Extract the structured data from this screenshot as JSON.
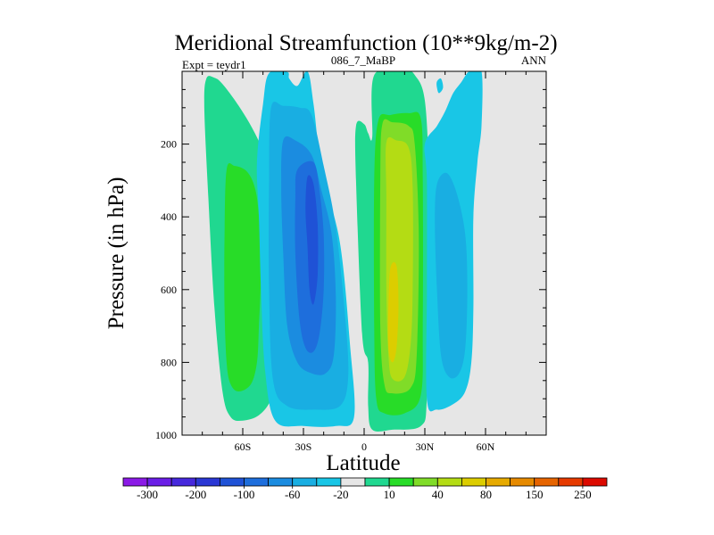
{
  "chart_data": {
    "type": "contour",
    "title": "Meridional Streamfunction (10**9kg/m-2)",
    "left_subtitle": "Expt = teydr1",
    "center_subtitle": "086_7_MaBP",
    "right_subtitle": "ANN",
    "xlabel": "Latitude",
    "ylabel": "Pressure (in hPa)",
    "xlim": [
      -90,
      90
    ],
    "ylim": [
      1000,
      0
    ],
    "x_ticks": [
      {
        "value": -60,
        "label": "60S"
      },
      {
        "value": -30,
        "label": "30S"
      },
      {
        "value": 0,
        "label": "0"
      },
      {
        "value": 30,
        "label": "30N"
      },
      {
        "value": 60,
        "label": "60N"
      }
    ],
    "y_ticks": [
      {
        "value": 200,
        "label": "200"
      },
      {
        "value": 400,
        "label": "400"
      },
      {
        "value": 600,
        "label": "600"
      },
      {
        "value": 800,
        "label": "800"
      },
      {
        "value": 1000,
        "label": "1000"
      }
    ],
    "background_color": "#e6e6e6",
    "colorbar": {
      "colors": [
        "#8b1ae6",
        "#6a1ee6",
        "#4628dc",
        "#2a37d4",
        "#1f52d6",
        "#1e6edc",
        "#1b8ce0",
        "#19aee2",
        "#19c6e6",
        "#e6e6e6",
        "#20d890",
        "#28dc28",
        "#80dc28",
        "#b4dc14",
        "#dccd00",
        "#e6aa00",
        "#e68a00",
        "#e66400",
        "#e63a00",
        "#dc0a00"
      ],
      "labels": [
        "-300",
        "-200",
        "-100",
        "-60",
        "-20",
        "10",
        "40",
        "80",
        "150",
        "250"
      ]
    },
    "contours": [
      {
        "level": "positive weak",
        "color": "#20d890",
        "points": [
          [
            -78,
            20
          ],
          [
            -74,
            18
          ],
          [
            -70,
            35
          ],
          [
            -62,
            95
          ],
          [
            -54,
            170
          ],
          [
            -48,
            250
          ],
          [
            -44,
            360
          ],
          [
            -42,
            500
          ],
          [
            -42,
            700
          ],
          [
            -44,
            820
          ],
          [
            -46,
            900
          ],
          [
            -52,
            945
          ],
          [
            -60,
            960
          ],
          [
            -66,
            950
          ],
          [
            -70,
            880
          ],
          [
            -74,
            650
          ],
          [
            -77,
            350
          ],
          [
            -79,
            100
          ]
        ]
      },
      {
        "level": "positive moderate",
        "color": "#28dc28",
        "points": [
          [
            -68,
            270
          ],
          [
            -64,
            260
          ],
          [
            -58,
            275
          ],
          [
            -54,
            320
          ],
          [
            -52,
            400
          ],
          [
            -51,
            550
          ],
          [
            -52,
            700
          ],
          [
            -53,
            800
          ],
          [
            -56,
            860
          ],
          [
            -62,
            880
          ],
          [
            -66,
            860
          ],
          [
            -68,
            800
          ],
          [
            -69,
            650
          ],
          [
            -69,
            450
          ]
        ]
      },
      {
        "level": "negative weak",
        "color": "#19c6e6",
        "points": [
          [
            -50,
            90
          ],
          [
            -47,
            5
          ],
          [
            -38,
            2
          ],
          [
            -37,
            20
          ],
          [
            -33,
            40
          ],
          [
            -28,
            0
          ],
          [
            -25,
            90
          ],
          [
            -21,
            270
          ],
          [
            -12,
            470
          ],
          [
            -7,
            750
          ],
          [
            -5,
            950
          ],
          [
            -14,
            975
          ],
          [
            -30,
            975
          ],
          [
            -44,
            960
          ],
          [
            -49,
            820
          ],
          [
            -51,
            600
          ],
          [
            -52,
            400
          ],
          [
            -53,
            250
          ]
        ]
      },
      {
        "level": "negative moderate",
        "color": "#19aee2",
        "points": [
          [
            -46,
            100
          ],
          [
            -40,
            95
          ],
          [
            -32,
            100
          ],
          [
            -26,
            120
          ],
          [
            -20,
            260
          ],
          [
            -14,
            430
          ],
          [
            -9,
            700
          ],
          [
            -8,
            850
          ],
          [
            -12,
            920
          ],
          [
            -24,
            930
          ],
          [
            -38,
            920
          ],
          [
            -45,
            850
          ],
          [
            -47,
            600
          ],
          [
            -47,
            300
          ]
        ]
      },
      {
        "level": "negative strong",
        "color": "#1b8ce0",
        "points": [
          [
            -40,
            190
          ],
          [
            -34,
            190
          ],
          [
            -26,
            230
          ],
          [
            -21,
            330
          ],
          [
            -16,
            450
          ],
          [
            -14,
            620
          ],
          [
            -15,
            780
          ],
          [
            -19,
            830
          ],
          [
            -26,
            830
          ],
          [
            -33,
            800
          ],
          [
            -38,
            700
          ],
          [
            -40,
            500
          ],
          [
            -41,
            320
          ]
        ]
      },
      {
        "level": "negative stronger",
        "color": "#1e6edc",
        "points": [
          [
            -33,
            270
          ],
          [
            -25,
            250
          ],
          [
            -22,
            330
          ],
          [
            -20,
            450
          ],
          [
            -20,
            600
          ],
          [
            -22,
            720
          ],
          [
            -25,
            770
          ],
          [
            -29,
            760
          ],
          [
            -32,
            680
          ],
          [
            -34,
            500
          ],
          [
            -34,
            350
          ]
        ]
      },
      {
        "level": "negative core",
        "color": "#1f52d6",
        "points": [
          [
            -28,
            290
          ],
          [
            -25,
            310
          ],
          [
            -23,
            420
          ],
          [
            -23,
            560
          ],
          [
            -25,
            640
          ],
          [
            -27,
            600
          ],
          [
            -28,
            480
          ],
          [
            -29,
            380
          ]
        ]
      },
      {
        "level": "positive weak",
        "color": "#20d890",
        "points": [
          [
            -4,
            150
          ],
          [
            0,
            145
          ],
          [
            2,
            170
          ],
          [
            4,
            180
          ],
          [
            5,
            10
          ],
          [
            20,
            0
          ],
          [
            25,
            10
          ],
          [
            30,
            80
          ],
          [
            32,
            300
          ],
          [
            32,
            600
          ],
          [
            31,
            900
          ],
          [
            28,
            975
          ],
          [
            14,
            985
          ],
          [
            4,
            985
          ],
          [
            2,
            920
          ],
          [
            2,
            800
          ],
          [
            -1,
            720
          ],
          [
            -4,
            300
          ]
        ]
      },
      {
        "level": "positive moderate",
        "color": "#28dc28",
        "points": [
          [
            7,
            135
          ],
          [
            13,
            120
          ],
          [
            22,
            115
          ],
          [
            28,
            130
          ],
          [
            29,
            300
          ],
          [
            29,
            700
          ],
          [
            28,
            890
          ],
          [
            20,
            940
          ],
          [
            10,
            940
          ],
          [
            6,
            900
          ],
          [
            5,
            700
          ],
          [
            5,
            300
          ]
        ]
      },
      {
        "level": "positive strong",
        "color": "#80dc28",
        "points": [
          [
            9,
            145
          ],
          [
            14,
            140
          ],
          [
            22,
            150
          ],
          [
            25,
            200
          ],
          [
            27,
            450
          ],
          [
            26,
            780
          ],
          [
            23,
            870
          ],
          [
            14,
            885
          ],
          [
            10,
            860
          ],
          [
            8,
            700
          ],
          [
            8,
            300
          ]
        ]
      },
      {
        "level": "positive stronger",
        "color": "#b4dc14",
        "points": [
          [
            11,
            195
          ],
          [
            16,
            190
          ],
          [
            22,
            210
          ],
          [
            24,
            320
          ],
          [
            24,
            600
          ],
          [
            23,
            750
          ],
          [
            20,
            840
          ],
          [
            14,
            845
          ],
          [
            12,
            780
          ],
          [
            11,
            600
          ],
          [
            11,
            350
          ]
        ]
      },
      {
        "level": "positive core",
        "color": "#dccd00",
        "points": [
          [
            13,
            540
          ],
          [
            16,
            535
          ],
          [
            17,
            640
          ],
          [
            16,
            760
          ],
          [
            14,
            800
          ],
          [
            12,
            760
          ],
          [
            12,
            640
          ]
        ]
      },
      {
        "level": "negative weak",
        "color": "#19c6e6",
        "points": [
          [
            30,
            200
          ],
          [
            36,
            150
          ],
          [
            40,
            110
          ],
          [
            44,
            60
          ],
          [
            48,
            30
          ],
          [
            52,
            0
          ],
          [
            58,
            0
          ],
          [
            58,
            150
          ],
          [
            56,
            250
          ],
          [
            54,
            400
          ],
          [
            54,
            650
          ],
          [
            53,
            800
          ],
          [
            50,
            880
          ],
          [
            44,
            915
          ],
          [
            36,
            930
          ],
          [
            31,
            900
          ],
          [
            31,
            600
          ],
          [
            31,
            300
          ]
        ]
      },
      {
        "level": "negative moderate",
        "color": "#19aee2",
        "points": [
          [
            36,
            310
          ],
          [
            41,
            280
          ],
          [
            46,
            340
          ],
          [
            50,
            450
          ],
          [
            51,
            600
          ],
          [
            50,
            760
          ],
          [
            47,
            830
          ],
          [
            42,
            840
          ],
          [
            38,
            780
          ],
          [
            36,
            600
          ],
          [
            35,
            420
          ]
        ]
      },
      {
        "level": "negative weak",
        "color": "#19c6e6",
        "points": [
          [
            36,
            28
          ],
          [
            38,
            20
          ],
          [
            39,
            45
          ],
          [
            37,
            60
          ],
          [
            36,
            45
          ]
        ]
      }
    ]
  }
}
